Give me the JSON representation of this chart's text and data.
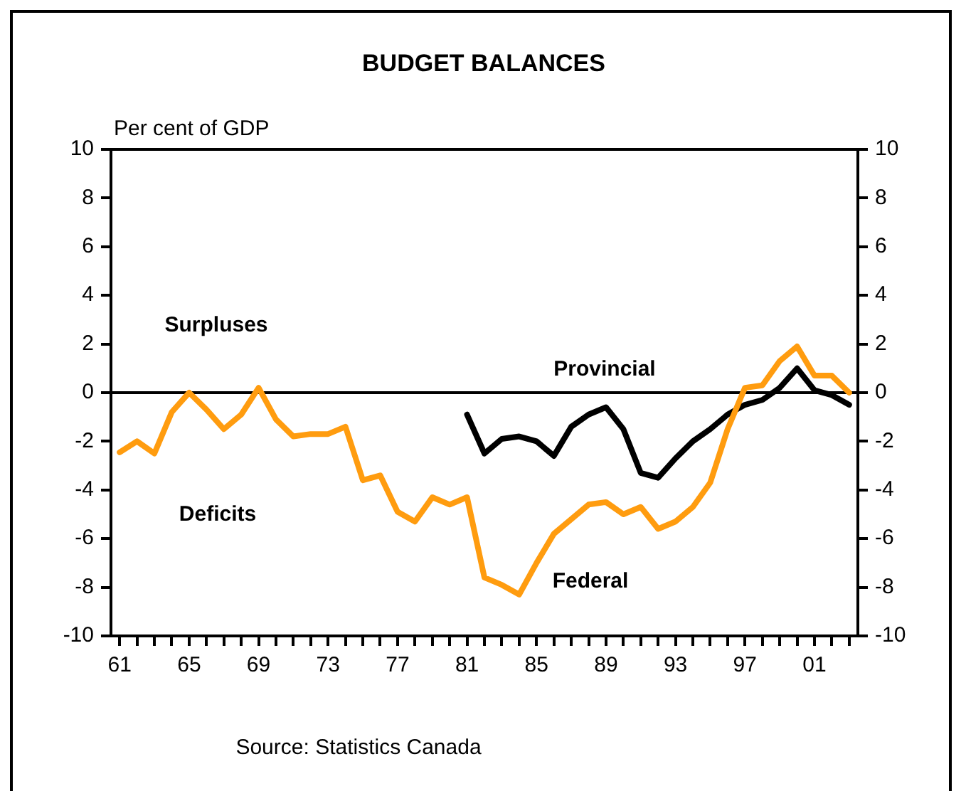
{
  "chart_data": {
    "type": "line",
    "title": "BUDGET BALANCES",
    "ylabel": "Per cent of GDP",
    "x": [
      1961,
      1962,
      1963,
      1964,
      1965,
      1966,
      1967,
      1968,
      1969,
      1970,
      1971,
      1972,
      1973,
      1974,
      1975,
      1976,
      1977,
      1978,
      1979,
      1980,
      1981,
      1982,
      1983,
      1984,
      1985,
      1986,
      1987,
      1988,
      1989,
      1990,
      1991,
      1992,
      1993,
      1994,
      1995,
      1996,
      1997,
      1998,
      1999,
      2000,
      2001,
      2002,
      2003
    ],
    "series": [
      {
        "name": "Federal",
        "color": "#ff9c0f",
        "values": [
          -2.45,
          -2.0,
          -2.5,
          -0.8,
          0.0,
          -0.7,
          -1.5,
          -0.9,
          0.2,
          -1.1,
          -1.8,
          -1.7,
          -1.7,
          -1.4,
          -3.6,
          -3.4,
          -4.9,
          -5.3,
          -4.3,
          -4.6,
          -4.3,
          -7.6,
          -7.9,
          -8.3,
          -7.0,
          -5.8,
          -5.2,
          -4.6,
          -4.5,
          -5.0,
          -4.7,
          -5.6,
          -5.3,
          -4.7,
          -3.7,
          -1.5,
          0.2,
          0.3,
          1.3,
          1.9,
          0.7,
          0.7,
          0.0
        ]
      },
      {
        "name": "Provincial",
        "color": "#000000",
        "values": [
          null,
          null,
          null,
          null,
          null,
          null,
          null,
          null,
          null,
          null,
          null,
          null,
          null,
          null,
          null,
          null,
          null,
          null,
          null,
          null,
          -0.9,
          -2.5,
          -1.9,
          -1.8,
          -2.0,
          -2.6,
          -1.4,
          -0.9,
          -0.6,
          -1.5,
          -3.3,
          -3.5,
          -2.7,
          -2.0,
          -1.5,
          -0.9,
          -0.5,
          -0.3,
          0.2,
          1.0,
          0.1,
          -0.1,
          -0.5
        ]
      }
    ],
    "xlim": [
      1960.5,
      2003.5
    ],
    "xticks": [
      {
        "value": 1961,
        "label": "61"
      },
      {
        "value": 1962,
        "label": null
      },
      {
        "value": 1963,
        "label": null
      },
      {
        "value": 1964,
        "label": null
      },
      {
        "value": 1965,
        "label": "65"
      },
      {
        "value": 1966,
        "label": null
      },
      {
        "value": 1967,
        "label": null
      },
      {
        "value": 1968,
        "label": null
      },
      {
        "value": 1969,
        "label": "69"
      },
      {
        "value": 1970,
        "label": null
      },
      {
        "value": 1971,
        "label": null
      },
      {
        "value": 1972,
        "label": null
      },
      {
        "value": 1973,
        "label": "73"
      },
      {
        "value": 1974,
        "label": null
      },
      {
        "value": 1975,
        "label": null
      },
      {
        "value": 1976,
        "label": null
      },
      {
        "value": 1977,
        "label": "77"
      },
      {
        "value": 1978,
        "label": null
      },
      {
        "value": 1979,
        "label": null
      },
      {
        "value": 1980,
        "label": null
      },
      {
        "value": 1981,
        "label": "81"
      },
      {
        "value": 1982,
        "label": null
      },
      {
        "value": 1983,
        "label": null
      },
      {
        "value": 1984,
        "label": null
      },
      {
        "value": 1985,
        "label": "85"
      },
      {
        "value": 1986,
        "label": null
      },
      {
        "value": 1987,
        "label": null
      },
      {
        "value": 1988,
        "label": null
      },
      {
        "value": 1989,
        "label": "89"
      },
      {
        "value": 1990,
        "label": null
      },
      {
        "value": 1991,
        "label": null
      },
      {
        "value": 1992,
        "label": null
      },
      {
        "value": 1993,
        "label": "93"
      },
      {
        "value": 1994,
        "label": null
      },
      {
        "value": 1995,
        "label": null
      },
      {
        "value": 1996,
        "label": null
      },
      {
        "value": 1997,
        "label": "97"
      },
      {
        "value": 1998,
        "label": null
      },
      {
        "value": 1999,
        "label": null
      },
      {
        "value": 2000,
        "label": null
      },
      {
        "value": 2001,
        "label": "01"
      },
      {
        "value": 2002,
        "label": null
      },
      {
        "value": 2003,
        "label": null
      }
    ],
    "ylim": [
      -10,
      10
    ],
    "yticks": [
      -10,
      -8,
      -6,
      -4,
      -2,
      0,
      2,
      4,
      6,
      8,
      10
    ],
    "y2lim": [
      -10,
      10
    ],
    "y2ticks": [
      -10,
      -8,
      -6,
      -4,
      -2,
      0,
      2,
      4,
      6,
      8,
      10
    ],
    "ref_lines": [
      {
        "axis": "y",
        "value": 0,
        "color": "#000000"
      }
    ],
    "annotations": [
      "Surpluses",
      "Deficits",
      "Source: Statistics Canada"
    ],
    "grid": false,
    "legend": false,
    "marker": "none",
    "line_style": "solid"
  }
}
